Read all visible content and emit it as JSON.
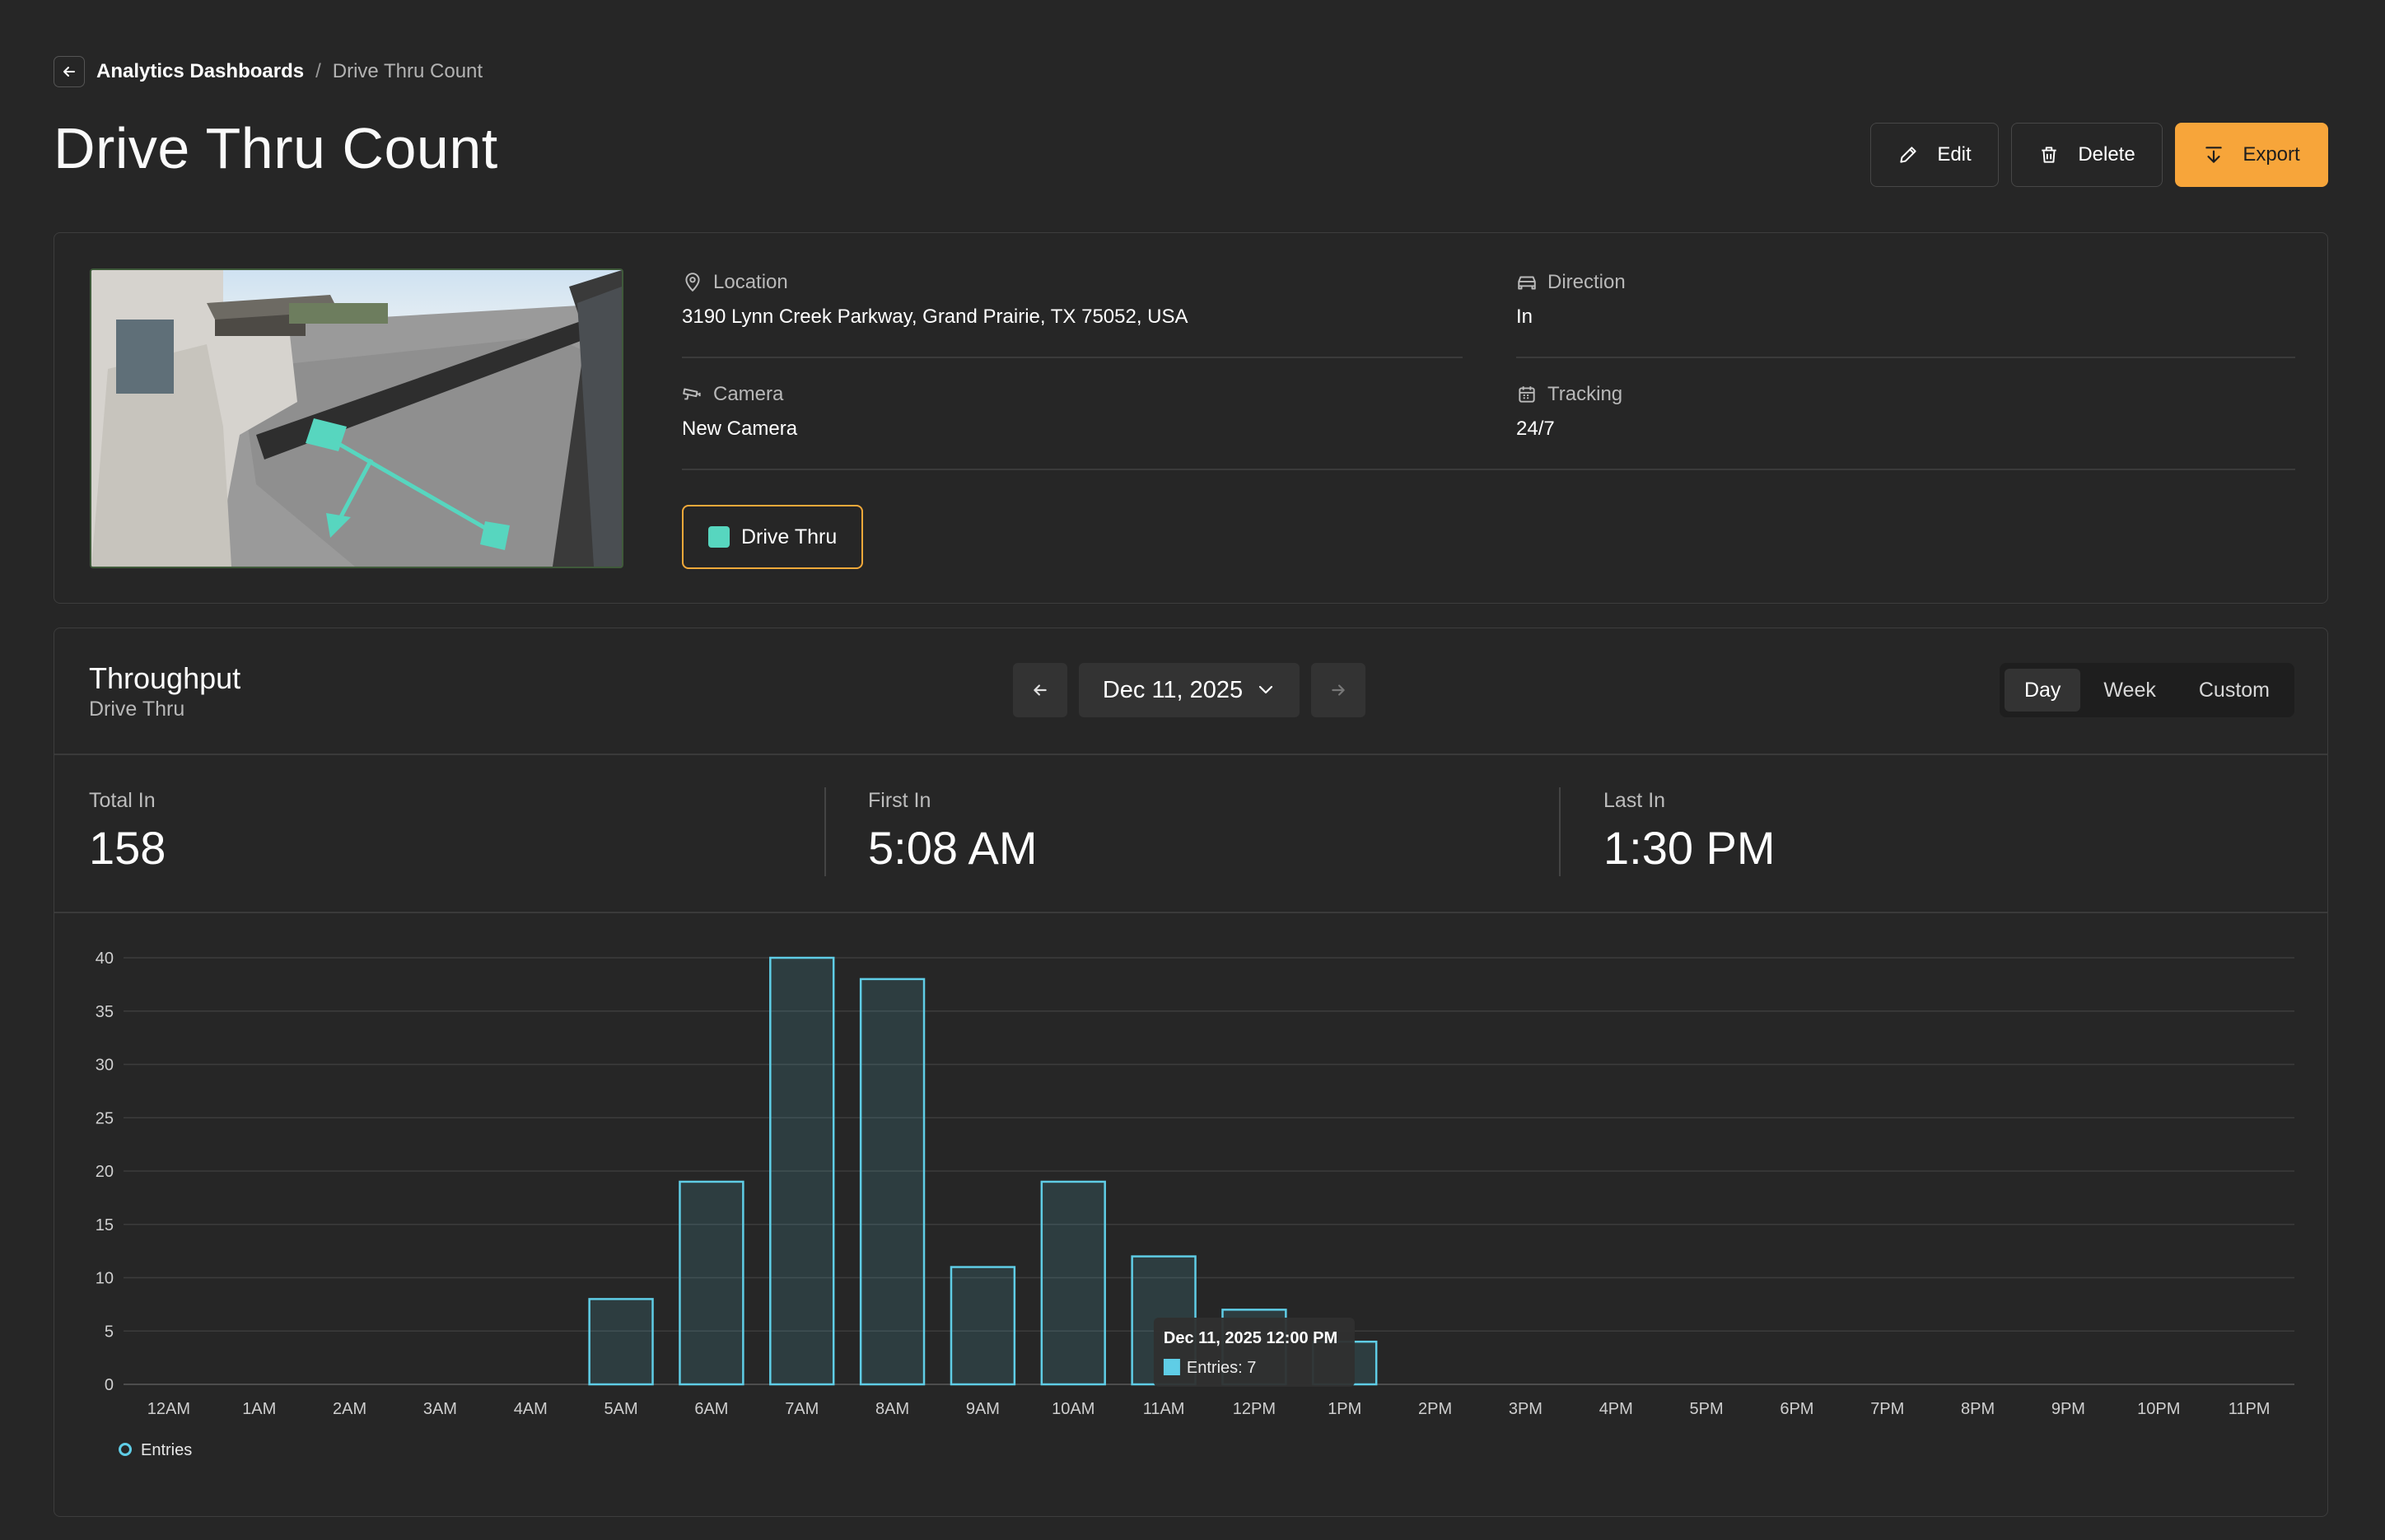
{
  "breadcrumb": {
    "parent": "Analytics Dashboards",
    "separator": "/",
    "current": "Drive Thru Count"
  },
  "page": {
    "title": "Drive Thru Count"
  },
  "actions": {
    "edit": "Edit",
    "delete": "Delete",
    "export": "Export",
    "accent": "#f7a53a"
  },
  "info": {
    "location_label": "Location",
    "location_value": "3190 Lynn Creek Parkway, Grand Prairie, TX 75052, USA",
    "direction_label": "Direction",
    "direction_value": "In",
    "camera_label": "Camera",
    "camera_value": "New Camera",
    "tracking_label": "Tracking",
    "tracking_value": "24/7",
    "zone_tag": "Drive Thru",
    "zone_color": "#57d6bf"
  },
  "throughput": {
    "title": "Throughput",
    "subtitle": "Drive Thru",
    "date": "Dec 11, 2025",
    "ranges": [
      "Day",
      "Week",
      "Custom"
    ],
    "active_range": "Day"
  },
  "stats": {
    "total_in_label": "Total In",
    "total_in": "158",
    "first_in_label": "First In",
    "first_in": "5:08 AM",
    "last_in_label": "Last In",
    "last_in": "1:30 PM"
  },
  "chart_data": {
    "type": "bar",
    "categories": [
      "12AM",
      "1AM",
      "2AM",
      "3AM",
      "4AM",
      "5AM",
      "6AM",
      "7AM",
      "8AM",
      "9AM",
      "10AM",
      "11AM",
      "12PM",
      "1PM",
      "2PM",
      "3PM",
      "4PM",
      "5PM",
      "6PM",
      "7PM",
      "8PM",
      "9PM",
      "10PM",
      "11PM"
    ],
    "series": [
      {
        "name": "Entries",
        "values": [
          0,
          0,
          0,
          0,
          0,
          8,
          19,
          40,
          38,
          11,
          19,
          12,
          7,
          4,
          0,
          0,
          0,
          0,
          0,
          0,
          0,
          0,
          0,
          0
        ]
      }
    ],
    "ylim": [
      0,
      40
    ],
    "yticks": [
      0,
      5,
      10,
      15,
      20,
      25,
      30,
      35,
      40
    ],
    "grid": true,
    "legend": "bottom-left",
    "bar_color": "#5fcde6",
    "tooltip": {
      "title": "Dec 11, 2025 12:00 PM",
      "text": "Entries: 7"
    }
  }
}
